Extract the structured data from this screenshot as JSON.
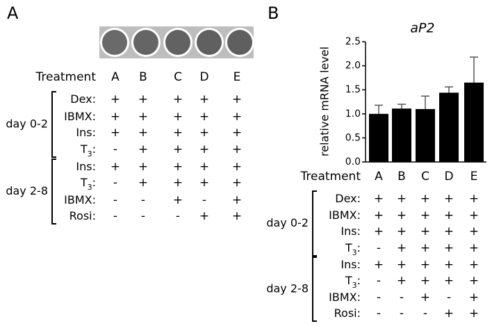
{
  "panel_a": {
    "label": "A",
    "table": {
      "header": "Treatment",
      "columns": [
        "A",
        "B",
        "C",
        "D",
        "E"
      ],
      "groups": [
        {
          "name": "day 0-2",
          "rows": [
            {
              "label": [
                "Dex:"
              ],
              "cells": [
                "+",
                "+",
                "+",
                "+",
                "+"
              ]
            },
            {
              "label": [
                "IBMX:"
              ],
              "cells": [
                "+",
                "+",
                "+",
                "+",
                "+"
              ]
            },
            {
              "label": [
                "Ins:"
              ],
              "cells": [
                "+",
                "+",
                "+",
                "+",
                "+"
              ]
            },
            {
              "label": [
                "T",
                "3",
                ":"
              ],
              "cells": [
                "-",
                "+",
                "+",
                "+",
                "+"
              ]
            }
          ]
        },
        {
          "name": "day 2-8",
          "rows": [
            {
              "label": [
                "Ins:"
              ],
              "cells": [
                "+",
                "+",
                "+",
                "+",
                "+"
              ]
            },
            {
              "label": [
                "T",
                "3",
                ":"
              ],
              "cells": [
                "-",
                "+",
                "+",
                "+",
                "+"
              ]
            },
            {
              "label": [
                "IBMX:"
              ],
              "cells": [
                "-",
                "-",
                "+",
                "-",
                "+"
              ]
            },
            {
              "label": [
                "Rosi:"
              ],
              "cells": [
                "-",
                "-",
                "-",
                "+",
                "+"
              ]
            }
          ]
        }
      ]
    }
  },
  "chart_data": {
    "type": "bar",
    "panel_label": "B",
    "title": "aP2",
    "y_label": "relative mRNA level",
    "categories": [
      "A",
      "B",
      "C",
      "D",
      "E"
    ],
    "values": [
      1.0,
      1.11,
      1.1,
      1.44,
      1.65
    ],
    "errors": [
      0.18,
      0.09,
      0.27,
      0.12,
      0.53
    ],
    "color": "#000000",
    "ylim": [
      0,
      2.5
    ],
    "yticks": [
      {
        "value": 0,
        "label": "0.0"
      },
      0.5,
      {
        "value": 1,
        "label": "1.0"
      },
      1.5,
      {
        "value": 2,
        "label": "2.0"
      },
      2.5
    ],
    "table": {
      "header": "Treatment",
      "columns": [
        "A",
        "B",
        "C",
        "D",
        "E"
      ],
      "groups": [
        {
          "name": "day 0-2",
          "rows": [
            {
              "label": [
                "Dex:"
              ],
              "cells": [
                "+",
                "+",
                "+",
                "+",
                "+"
              ]
            },
            {
              "label": [
                "IBMX:"
              ],
              "cells": [
                "+",
                "+",
                "+",
                "+",
                "+"
              ]
            },
            {
              "label": [
                "Ins:"
              ],
              "cells": [
                "+",
                "+",
                "+",
                "+",
                "+"
              ]
            },
            {
              "label": [
                "T",
                "3",
                ":"
              ],
              "cells": [
                "-",
                "+",
                "+",
                "+",
                "+"
              ]
            }
          ]
        },
        {
          "name": "day 2-8",
          "rows": [
            {
              "label": [
                "Ins:"
              ],
              "cells": [
                "+",
                "+",
                "+",
                "+",
                "+"
              ]
            },
            {
              "label": [
                "T",
                "3",
                ":"
              ],
              "cells": [
                "-",
                "+",
                "+",
                "+",
                "+"
              ]
            },
            {
              "label": [
                "IBMX:"
              ],
              "cells": [
                "-",
                "-",
                "+",
                "-",
                "+"
              ]
            },
            {
              "label": [
                "Rosi:"
              ],
              "cells": [
                "-",
                "-",
                "-",
                "+",
                "+"
              ]
            }
          ]
        }
      ]
    }
  }
}
